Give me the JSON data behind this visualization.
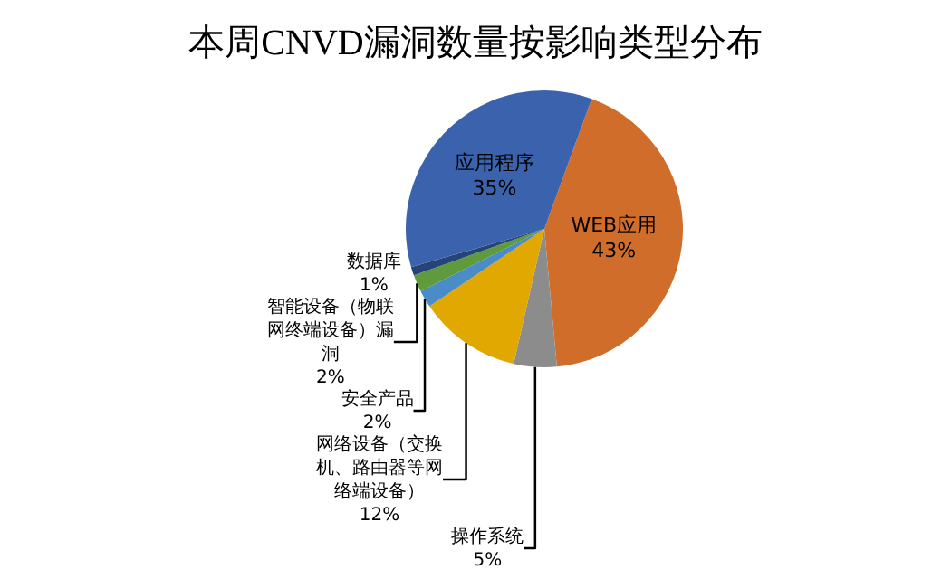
{
  "chart_data": {
    "type": "pie",
    "title": "本周CNVD漏洞数量按影响类型分布",
    "categories": [
      "WEB应用",
      "操作系统",
      "网络设备（交换机、路由器等网络端设备）",
      "安全产品",
      "智能设备（物联网终端设备）漏洞",
      "数据库",
      "应用程序"
    ],
    "values": [
      43,
      5,
      12,
      2,
      2,
      1,
      35
    ],
    "value_labels": [
      "43%",
      "5%",
      "12%",
      "2%",
      "2%",
      "1%",
      "35%"
    ],
    "colors": [
      "#d06d2a",
      "#8c8c8c",
      "#e0a800",
      "#4a8cc7",
      "#5f9a3c",
      "#264478",
      "#3b63ad"
    ],
    "legend": false
  }
}
